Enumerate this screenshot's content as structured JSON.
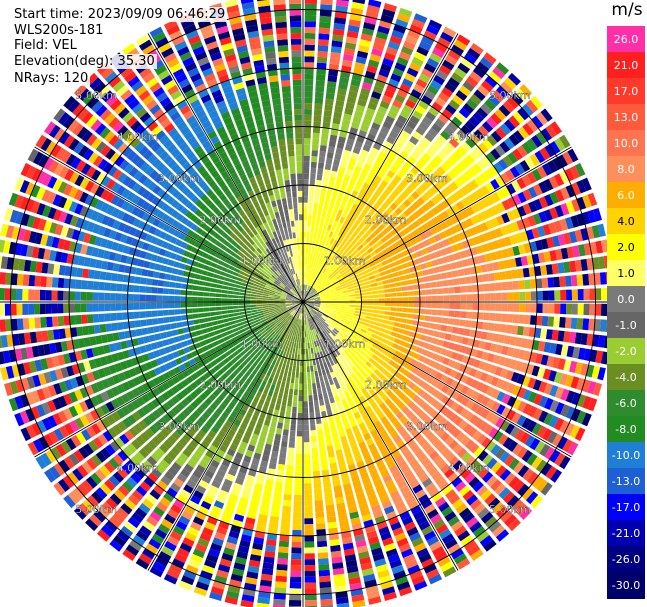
{
  "header": {
    "start_time": "Start time: 2023/09/09 06:46:29",
    "instrument": "WLS200s-181",
    "field": "Field: VEL",
    "elevation": "Elevation(deg): 35.30",
    "nrays": "NRays: 120"
  },
  "colorbar": {
    "units": "m/s",
    "levels": [
      {
        "label": "26.0",
        "color": "#ff2fa8"
      },
      {
        "label": "21.0",
        "color": "#ff1f1f"
      },
      {
        "label": "17.0",
        "color": "#ff3a2a"
      },
      {
        "label": "13.0",
        "color": "#ff5a3c"
      },
      {
        "label": "10.0",
        "color": "#ff7450"
      },
      {
        "label": "8.0",
        "color": "#ff8f5a"
      },
      {
        "label": "6.0",
        "color": "#ffae00"
      },
      {
        "label": "4.0",
        "color": "#ffd200"
      },
      {
        "label": "2.0",
        "color": "#ffff00"
      },
      {
        "label": "1.0",
        "color": "#ffff66"
      },
      {
        "label": "0.0",
        "color": "#7a7a7a"
      },
      {
        "label": "-1.0",
        "color": "#666666"
      },
      {
        "label": "-2.0",
        "color": "#9acd32"
      },
      {
        "label": "-4.0",
        "color": "#6b8e23"
      },
      {
        "label": "-6.0",
        "color": "#2e8b2e"
      },
      {
        "label": "-8.0",
        "color": "#228b22"
      },
      {
        "label": "-10.0",
        "color": "#1f7fd6"
      },
      {
        "label": "-13.0",
        "color": "#1e5fd6"
      },
      {
        "label": "-17.0",
        "color": "#0000ff"
      },
      {
        "label": "-21.0",
        "color": "#0000b0"
      },
      {
        "label": "-26.0",
        "color": "#000080"
      },
      {
        "label": "-30.0",
        "color": "#00006a"
      }
    ]
  },
  "chart_data": {
    "type": "heatmap",
    "projection": "polar PPI",
    "field": "VEL",
    "units": "m/s",
    "nrays": 120,
    "elevation_deg": 35.3,
    "range_rings_km": [
      1.0,
      2.0,
      3.0,
      4.0,
      5.0
    ],
    "range_ring_labels": [
      "1.00km",
      "2.00km",
      "3.00km",
      "4.00km",
      "5.00km"
    ],
    "max_range_km": 5.3,
    "velocity_pattern": {
      "receding_max_ms": 10.0,
      "approaching_max_ms": -10.0,
      "receding_direction": "north-east",
      "approaching_direction": "south-west",
      "noisy_beyond_km": 4.0
    },
    "colorbar_ticks": [
      26.0,
      21.0,
      17.0,
      13.0,
      10.0,
      8.0,
      6.0,
      4.0,
      2.0,
      1.0,
      0.0,
      -1.0,
      -2.0,
      -4.0,
      -6.0,
      -8.0,
      -10.0,
      -13.0,
      -17.0,
      -21.0,
      -26.0,
      -30.0
    ]
  }
}
